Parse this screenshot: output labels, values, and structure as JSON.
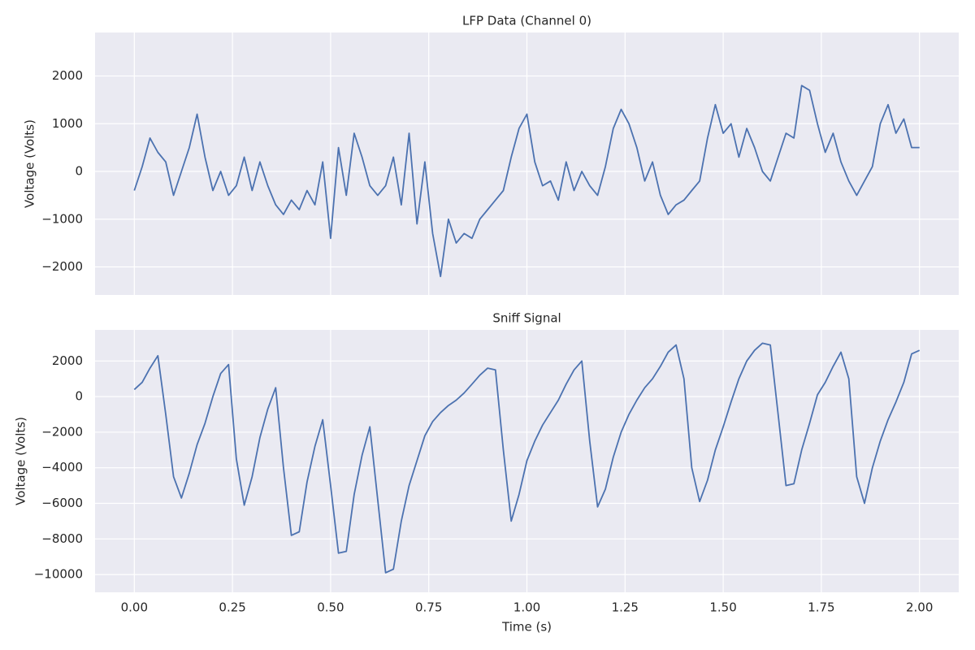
{
  "chart_data": [
    {
      "type": "line",
      "title": "LFP Data (Channel 0)",
      "ylabel": "Voltage (Volts)",
      "x": [
        0,
        0.02,
        0.04,
        0.06,
        0.08,
        0.1,
        0.12,
        0.14,
        0.16,
        0.18,
        0.2,
        0.22,
        0.24,
        0.26,
        0.28,
        0.3,
        0.32,
        0.34,
        0.36,
        0.38,
        0.4,
        0.42,
        0.44,
        0.46,
        0.48,
        0.5,
        0.52,
        0.54,
        0.56,
        0.58,
        0.6,
        0.62,
        0.64,
        0.66,
        0.68,
        0.7,
        0.72,
        0.74,
        0.76,
        0.78,
        0.8,
        0.82,
        0.84,
        0.86,
        0.88,
        0.9,
        0.92,
        0.94,
        0.96,
        0.98,
        1,
        1.02,
        1.04,
        1.06,
        1.08,
        1.1,
        1.12,
        1.14,
        1.16,
        1.18,
        1.2,
        1.22,
        1.24,
        1.26,
        1.28,
        1.3,
        1.32,
        1.34,
        1.36,
        1.38,
        1.4,
        1.42,
        1.44,
        1.46,
        1.48,
        1.5,
        1.52,
        1.54,
        1.56,
        1.58,
        1.6,
        1.62,
        1.64,
        1.66,
        1.68,
        1.7,
        1.72,
        1.74,
        1.76,
        1.78,
        1.8,
        1.82,
        1.84,
        1.86,
        1.88,
        1.9,
        1.92,
        1.94,
        1.96,
        1.98,
        2
      ],
      "series": [
        {
          "color": "#4c72b0",
          "values": [
            -400,
            100,
            700,
            400,
            200,
            -500,
            0,
            500,
            1200,
            300,
            -400,
            0,
            -500,
            -300,
            300,
            -400,
            200,
            -300,
            -700,
            -900,
            -600,
            -800,
            -400,
            -700,
            200,
            -1400,
            500,
            -500,
            800,
            300,
            -300,
            -500,
            -300,
            300,
            -700,
            800,
            -1100,
            200,
            -1300,
            -2200,
            -1000,
            -1500,
            -1300,
            -1400,
            -1000,
            -800,
            -600,
            -400,
            300,
            900,
            1200,
            200,
            -300,
            -200,
            -600,
            200,
            -400,
            0,
            -300,
            -500,
            100,
            900,
            1300,
            1000,
            500,
            -200,
            200,
            -500,
            -900,
            -700,
            -600,
            -400,
            -200,
            700,
            1400,
            800,
            1000,
            300,
            900,
            500,
            0,
            -200,
            300,
            800,
            700,
            1800,
            1700,
            1000,
            400,
            800,
            200,
            -200,
            -500,
            -200,
            100,
            1000,
            1400,
            800,
            1100,
            500,
            500
          ]
        }
      ],
      "xlim": [
        -0.1,
        2.1
      ],
      "xticks": [
        0,
        0.25,
        0.5,
        0.75,
        1,
        1.25,
        1.5,
        1.75,
        2
      ],
      "ylim": [
        -2587,
        2911
      ],
      "yticks": [
        {
          "value": -2000,
          "label": "−2000"
        },
        {
          "value": -1000,
          "label": "−1000"
        },
        0,
        1000,
        2000
      ],
      "grid": true
    },
    {
      "type": "line",
      "title": "Sniff Signal",
      "ylabel": "Voltage (Volts)",
      "xlabel": "Time (s)",
      "x": [
        0,
        0.02,
        0.04,
        0.06,
        0.08,
        0.1,
        0.12,
        0.14,
        0.16,
        0.18,
        0.2,
        0.22,
        0.24,
        0.26,
        0.28,
        0.3,
        0.32,
        0.34,
        0.36,
        0.38,
        0.4,
        0.42,
        0.44,
        0.46,
        0.48,
        0.5,
        0.52,
        0.54,
        0.56,
        0.58,
        0.6,
        0.62,
        0.64,
        0.66,
        0.68,
        0.7,
        0.72,
        0.74,
        0.76,
        0.78,
        0.8,
        0.82,
        0.84,
        0.86,
        0.88,
        0.9,
        0.92,
        0.94,
        0.96,
        0.98,
        1,
        1.02,
        1.04,
        1.06,
        1.08,
        1.1,
        1.12,
        1.14,
        1.16,
        1.18,
        1.2,
        1.22,
        1.24,
        1.26,
        1.28,
        1.3,
        1.32,
        1.34,
        1.36,
        1.38,
        1.4,
        1.42,
        1.44,
        1.46,
        1.48,
        1.5,
        1.52,
        1.54,
        1.56,
        1.58,
        1.6,
        1.62,
        1.64,
        1.66,
        1.68,
        1.7,
        1.72,
        1.74,
        1.76,
        1.78,
        1.8,
        1.82,
        1.84,
        1.86,
        1.88,
        1.9,
        1.92,
        1.94,
        1.96,
        1.98,
        2
      ],
      "series": [
        {
          "color": "#4c72b0",
          "values": [
            400,
            800,
            1600,
            2300,
            -1000,
            -4500,
            -5700,
            -4300,
            -2700,
            -1500,
            0,
            1300,
            1800,
            -3500,
            -6100,
            -4500,
            -2300,
            -700,
            500,
            -4000,
            -7800,
            -7600,
            -4800,
            -2800,
            -1300,
            -5000,
            -8800,
            -8700,
            -5500,
            -3300,
            -1700,
            -5800,
            -9900,
            -9700,
            -7000,
            -5000,
            -3600,
            -2200,
            -1400,
            -900,
            -500,
            -200,
            200,
            700,
            1200,
            1600,
            1500,
            -3000,
            -7000,
            -5500,
            -3600,
            -2500,
            -1600,
            -900,
            -200,
            700,
            1500,
            2000,
            -2500,
            -6200,
            -5200,
            -3400,
            -2000,
            -1000,
            -200,
            500,
            1000,
            1700,
            2500,
            2900,
            1000,
            -4000,
            -5900,
            -4700,
            -3000,
            -1700,
            -300,
            1000,
            2000,
            2600,
            3000,
            2900,
            -1000,
            -5000,
            -4900,
            -3000,
            -1500,
            100,
            800,
            1700,
            2500,
            1000,
            -4500,
            -6000,
            -4000,
            -2500,
            -1300,
            -300,
            800,
            2400,
            2600
          ]
        }
      ],
      "xlim": [
        -0.1,
        2.1
      ],
      "xticks": [
        {
          "value": 0,
          "label": "0.00"
        },
        {
          "value": 0.25,
          "label": "0.25"
        },
        {
          "value": 0.5,
          "label": "0.50"
        },
        {
          "value": 0.75,
          "label": "0.75"
        },
        {
          "value": 1,
          "label": "1.00"
        },
        {
          "value": 1.25,
          "label": "1.25"
        },
        {
          "value": 1.5,
          "label": "1.50"
        },
        {
          "value": 1.75,
          "label": "1.75"
        },
        {
          "value": 2,
          "label": "2.00"
        }
      ],
      "ylim": [
        -11000,
        3750
      ],
      "yticks": [
        {
          "value": -10000,
          "label": "−10000"
        },
        {
          "value": -8000,
          "label": "−8000"
        },
        {
          "value": -6000,
          "label": "−6000"
        },
        {
          "value": -4000,
          "label": "−4000"
        },
        {
          "value": -2000,
          "label": "−2000"
        },
        0,
        2000
      ],
      "grid": true
    }
  ]
}
